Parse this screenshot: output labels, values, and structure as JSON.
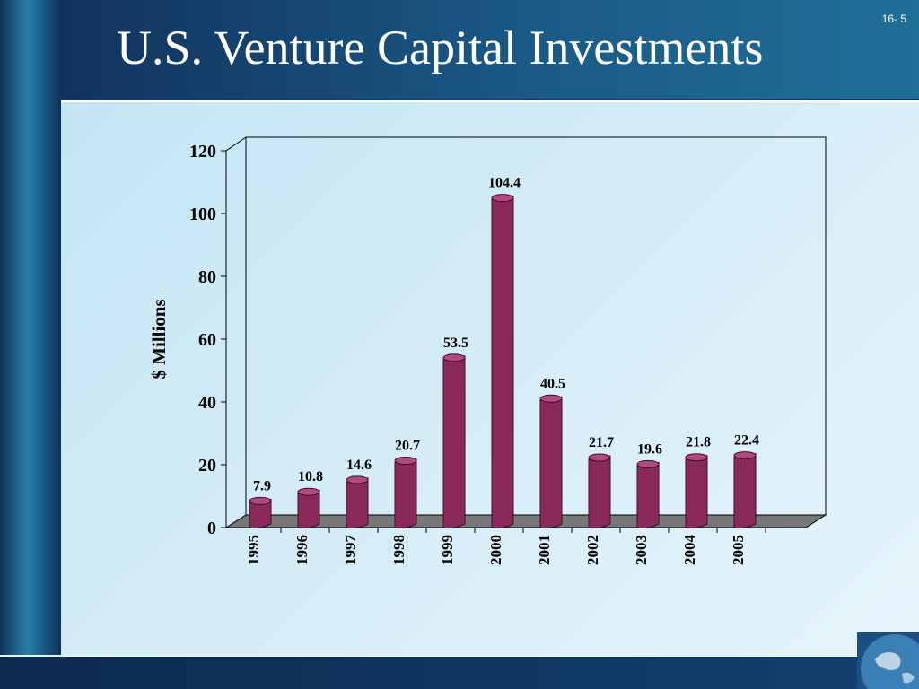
{
  "slide": {
    "title": "U.S. Venture Capital Investments",
    "number": "16- 5"
  },
  "colors": {
    "bar": "#8c2a5c",
    "bar_highlight": "#b04a80",
    "floor": "#777777",
    "background": "#123a6a",
    "panel": "#d4ecf7"
  },
  "chart_data": {
    "type": "bar",
    "title": "",
    "xlabel": "",
    "ylabel": "$ Millions",
    "categories": [
      "1995",
      "1996",
      "1997",
      "1998",
      "1999",
      "2000",
      "2001",
      "2002",
      "2003",
      "2004",
      "2005"
    ],
    "values": [
      7.9,
      10.8,
      14.6,
      20.7,
      53.5,
      104.4,
      40.5,
      21.7,
      19.6,
      21.8,
      22.4
    ],
    "data_labels": [
      "7.9",
      "10.8",
      "14.6",
      "20.7",
      "53.5",
      "104.4",
      "40.5",
      "21.7",
      "19.6",
      "21.8",
      "22.4"
    ],
    "yticks": [
      "0",
      "20",
      "40",
      "60",
      "80",
      "100",
      "120"
    ],
    "ylim": [
      0,
      120
    ],
    "grid": false,
    "style": "3d-cylinder"
  }
}
